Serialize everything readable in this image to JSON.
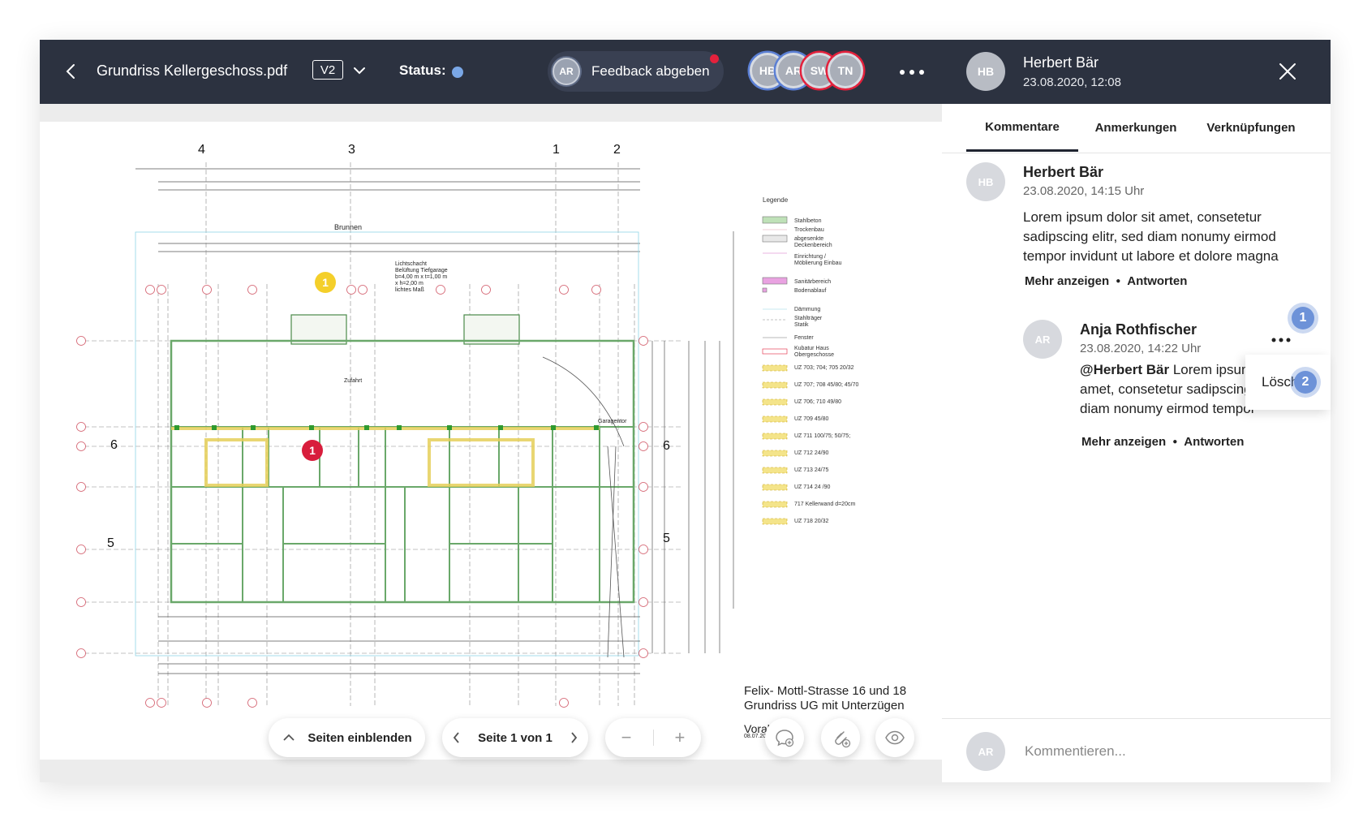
{
  "toolbar": {
    "file_title": "Grundriss Kellergeschoss.pdf",
    "version": "V2",
    "status_label": "Status:",
    "status_color": "#7aa7e6",
    "feedback_avatar": "AR",
    "feedback_label": "Feedback abgeben",
    "avatars": [
      "HB",
      "AR",
      "SW",
      "TN"
    ]
  },
  "drawing": {
    "legend_title": "Legende",
    "legend_items": [
      "Stahlbeton",
      "Trockenbau",
      "abgesenkte Deckenbereich",
      "Einrichtung / Möblierung Einbau",
      "Sanitärbereich",
      "Bodenablauf",
      "Dämmung",
      "Stahlträger Statik",
      "Fenster",
      "Kubatur Haus Obergeschosse",
      "UZ 703; 704; 705   20/32",
      "UZ 707; 708   45/80; 45/70",
      "UZ 706; 710   49/80",
      "UZ 709   45/80",
      "UZ 711   100/75; 50/75;",
      "UZ 712   24/90",
      "UZ 713   24/75",
      "UZ 714   24 /90",
      "717  Kellerwand d=20cm",
      "UZ 718   20/32"
    ],
    "axis_top": [
      "4",
      "3",
      "1",
      "2"
    ],
    "axis_side_left": [
      "6",
      "5"
    ],
    "axis_side_right": [
      "6",
      "5"
    ],
    "label_brunnen": "Brunnen",
    "label_lichtschacht": [
      "Lichtschacht",
      "Belüftung Tiefgarage",
      "b=4,00 m x t=1,00 m",
      "x h=2,00 m",
      "lichtes Maß"
    ],
    "label_zufahrt": "Zufahrt",
    "label_garagentor": "Garagentor",
    "address_line1": "Felix- Mottl-Strasse 16 und 18",
    "address_line2": "Grundriss UG mit Unterzügen",
    "vorabzug": "Vorabzug",
    "vorabzug_date": "08.07.201",
    "marker_yellow": "1",
    "marker_red": "1"
  },
  "controls": {
    "pages_label": "Seiten einblenden",
    "page_label": "Seite 1 von 1",
    "zoom_out": "−",
    "zoom_in": "+"
  },
  "panel": {
    "header_avatar": "HB",
    "header_name": "Herbert Bär",
    "header_date": "23.08.2020, 12:08",
    "tabs": [
      "Kommentare",
      "Anmerkungen",
      "Verknüpfungen"
    ],
    "comment1": {
      "avatar": "HB",
      "author": "Herbert Bär",
      "date": "23.08.2020, 14:15 Uhr",
      "text": "Lorem ipsum dolor sit amet, consetetur sadipscing elitr, sed diam nonumy eirmod tempor invidunt ut labore et dolore magna",
      "more": "Mehr anzeigen",
      "reply": "Antworten"
    },
    "comment2": {
      "avatar": "AR",
      "author": "Anja Rothfischer",
      "date": "23.08.2020, 14:22 Uhr",
      "mention": "@Herbert Bär",
      "text": " Lorem ipsum dolor sit amet, consetetur sadipscing elitr, sed diam nonumy eirmod tempor",
      "more": "Mehr anzeigen",
      "reply": "Antworten"
    },
    "menu_delete": "Löschen",
    "step1": "1",
    "step2": "2",
    "composer_avatar": "AR",
    "composer_placeholder": "Kommentieren..."
  }
}
